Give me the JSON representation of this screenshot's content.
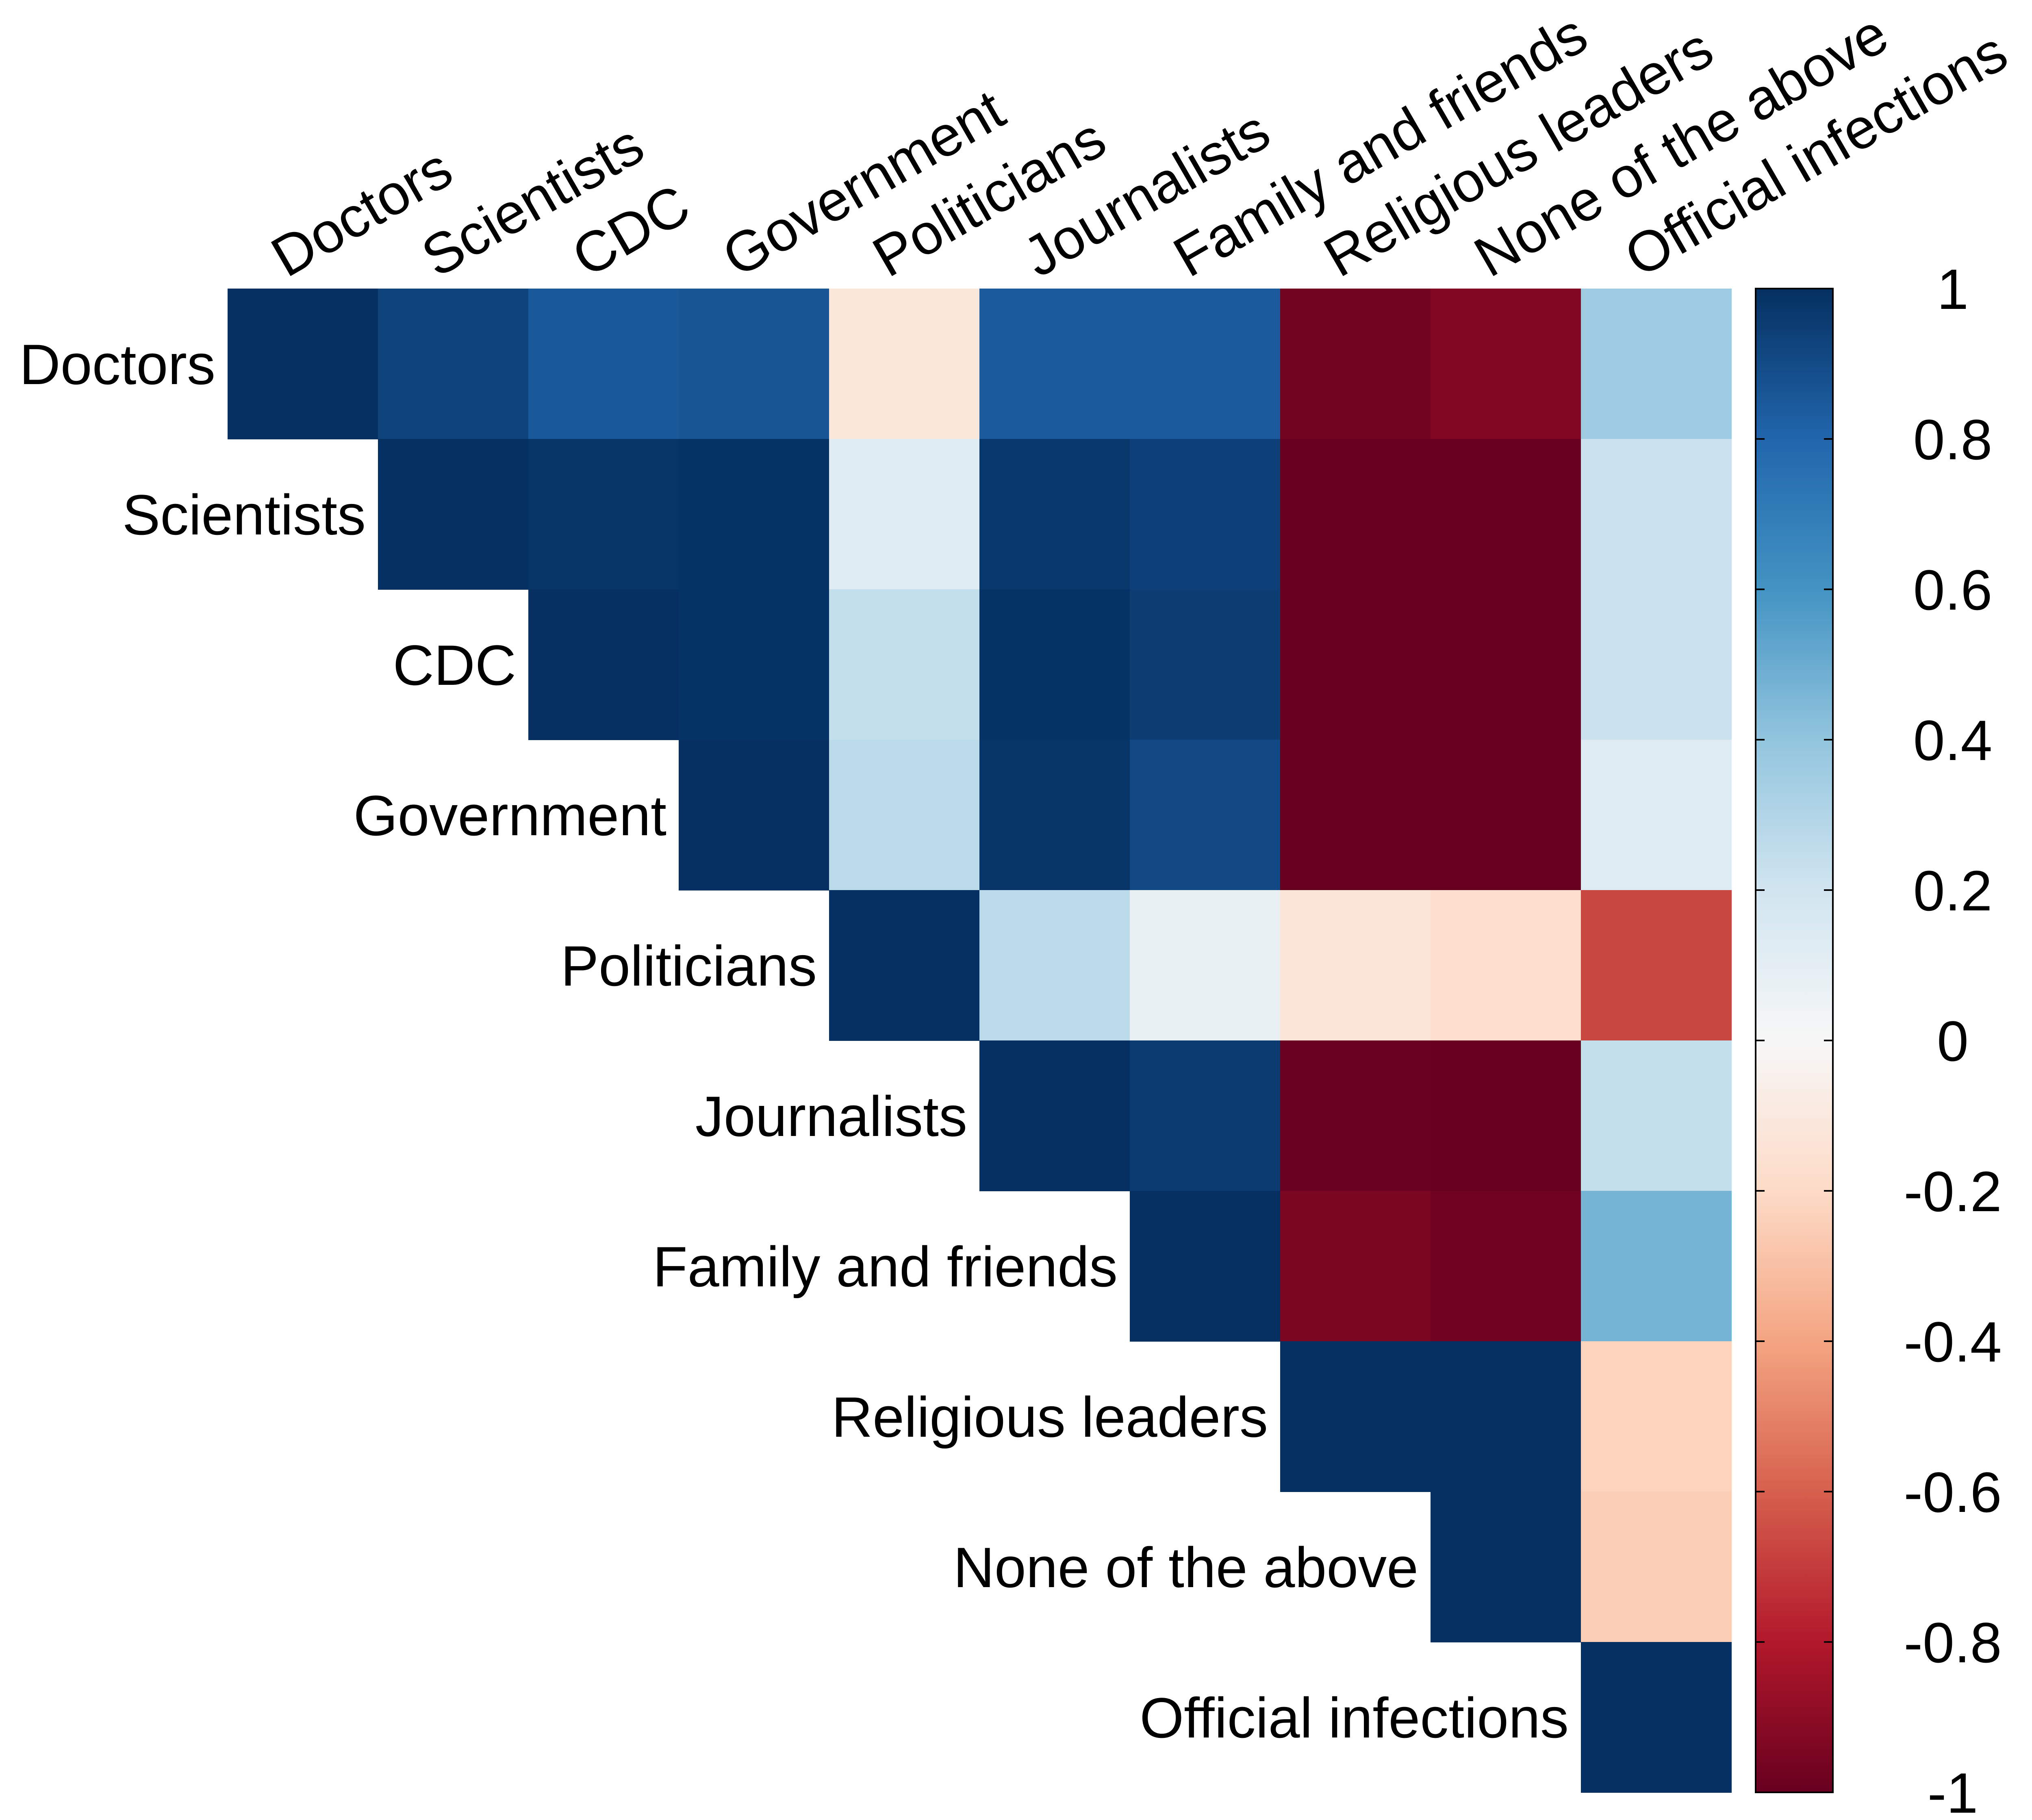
{
  "chart_data": {
    "type": "heatmap",
    "title": "",
    "xlabel": "",
    "ylabel": "",
    "layout": "upper-triangular",
    "categories": [
      "Doctors",
      "Scientists",
      "CDC",
      "Government",
      "Politicians",
      "Journalists",
      "Family and friends",
      "Religious leaders",
      "None of the above",
      "Official infections"
    ],
    "values": [
      [
        1.0,
        0.93,
        0.85,
        0.86,
        -0.12,
        0.84,
        0.84,
        -0.97,
        -0.93,
        0.36
      ],
      [
        null,
        1.0,
        0.98,
        0.99,
        0.12,
        0.97,
        0.94,
        -1.0,
        -1.0,
        0.22
      ],
      [
        null,
        null,
        1.0,
        0.99,
        0.24,
        0.99,
        0.95,
        -1.0,
        -1.0,
        0.22
      ],
      [
        null,
        null,
        null,
        1.0,
        0.27,
        0.98,
        0.91,
        -1.0,
        -1.0,
        0.13
      ],
      [
        null,
        null,
        null,
        null,
        1.0,
        0.27,
        0.08,
        -0.13,
        -0.17,
        -0.67
      ],
      [
        null,
        null,
        null,
        null,
        null,
        1.0,
        0.96,
        -0.99,
        -1.0,
        0.24
      ],
      [
        null,
        null,
        null,
        null,
        null,
        null,
        1.0,
        -0.95,
        -0.98,
        0.47
      ],
      [
        null,
        null,
        null,
        null,
        null,
        null,
        null,
        1.0,
        1.0,
        -0.23
      ],
      [
        null,
        null,
        null,
        null,
        null,
        null,
        null,
        null,
        1.0,
        -0.25
      ],
      [
        null,
        null,
        null,
        null,
        null,
        null,
        null,
        null,
        null,
        1.0
      ]
    ],
    "colorbar": {
      "range": [
        -1,
        1
      ],
      "ticks": [
        1,
        0.8,
        0.6,
        0.4,
        0.2,
        0,
        -0.2,
        -0.4,
        -0.6,
        -0.8,
        -1
      ],
      "tick_labels": [
        "1",
        "0.8",
        "0.6",
        "0.4",
        "0.2",
        "0",
        "-0.2",
        "-0.4",
        "-0.6",
        "-0.8",
        "-1"
      ],
      "colors": [
        "#67001f",
        "#b2182b",
        "#d6604d",
        "#f4a582",
        "#fddbc7",
        "#f7f7f7",
        "#d1e5f0",
        "#92c5de",
        "#4393c3",
        "#2166ac",
        "#053061"
      ]
    },
    "grid": false,
    "legend_position": "right"
  }
}
